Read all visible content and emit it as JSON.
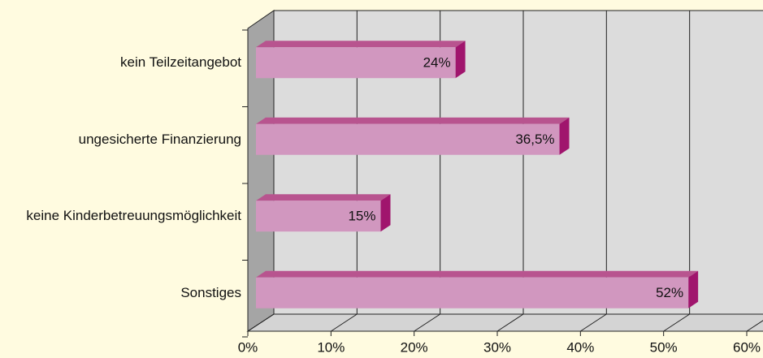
{
  "chart_data": {
    "type": "bar",
    "orientation": "horizontal",
    "categories": [
      "kein Teilzeitangebot",
      "ungesicherte Finanzierung",
      "keine Kinderbetreuungsmöglichkeit",
      "Sonstiges"
    ],
    "values": [
      24,
      36.5,
      15,
      52
    ],
    "value_labels": [
      "24%",
      "36,5%",
      "15%",
      "52%"
    ],
    "color": "#d197bf",
    "xlim": [
      0,
      60
    ],
    "xticks": [
      {
        "value": 0,
        "label": "0%"
      },
      {
        "value": 10,
        "label": "10%"
      },
      {
        "value": 20,
        "label": "20%"
      },
      {
        "value": 30,
        "label": "30%"
      },
      {
        "value": 40,
        "label": "40%"
      },
      {
        "value": 50,
        "label": "50%"
      },
      {
        "value": 60,
        "label": "60%"
      }
    ],
    "grid": true
  }
}
